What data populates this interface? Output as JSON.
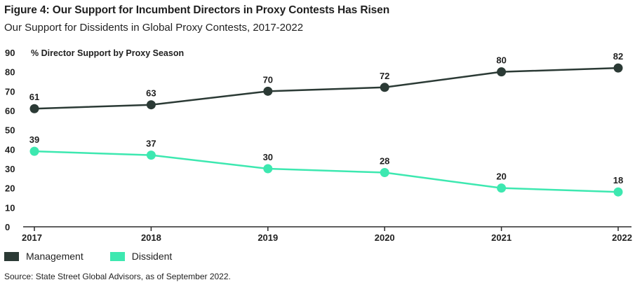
{
  "header": {
    "title": "Figure 4: Our Support for Incumbent Directors in Proxy Contests Has Risen",
    "subtitle": "Our Support for Dissidents in Global Proxy Contests, 2017-2022"
  },
  "source": "Source: State Street Global Advisors, as of September 2022.",
  "chart_data": {
    "type": "line",
    "title": "Figure 4: Our Support for Incumbent Directors in Proxy Contests Has Risen",
    "subtitle": "Our Support for Dissidents in Global Proxy Contests, 2017-2022",
    "ylabel": "% Director Support by Proxy Season",
    "xlabel": "",
    "categories": [
      "2017",
      "2018",
      "2019",
      "2020",
      "2021",
      "2022"
    ],
    "ylim": [
      0,
      90
    ],
    "yticks": [
      0,
      10,
      20,
      30,
      40,
      50,
      60,
      70,
      80,
      90
    ],
    "grid": false,
    "legend_position": "bottom-left",
    "series": [
      {
        "name": "Management",
        "values": [
          61,
          63,
          70,
          72,
          80,
          82
        ],
        "color": "#2b3a35"
      },
      {
        "name": "Dissident",
        "values": [
          39,
          37,
          30,
          28,
          20,
          18
        ],
        "color": "#3de8b0"
      }
    ]
  }
}
